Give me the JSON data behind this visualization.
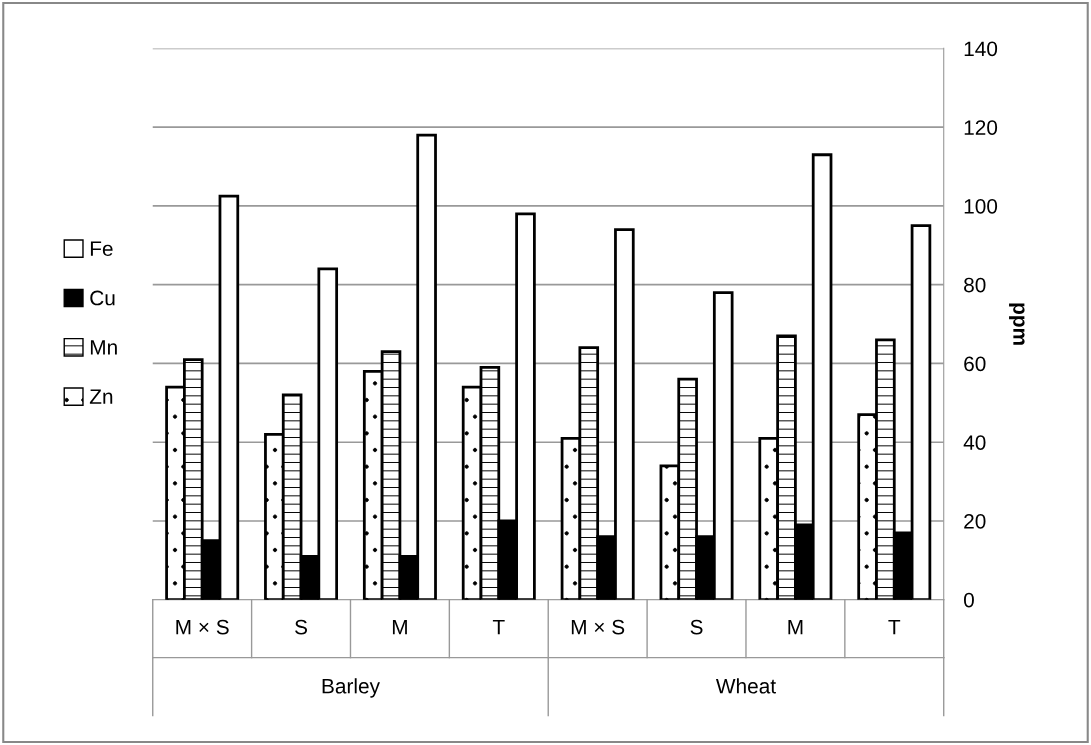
{
  "chart_data": {
    "type": "bar",
    "categories": [
      "M × S",
      "S",
      "M",
      "T",
      "M × S",
      "S",
      "M",
      "T"
    ],
    "annotations": [
      "Barley",
      "Wheat"
    ],
    "ylabel": "ppm",
    "series": [
      {
        "name": "Zn",
        "color": "#000000",
        "values": [
          54,
          42,
          58,
          54,
          41,
          34,
          41,
          47
        ]
      },
      {
        "name": "Mn",
        "color": "#000000",
        "values": [
          61,
          52,
          63,
          59,
          64,
          56,
          67,
          66
        ]
      },
      {
        "name": "Cu",
        "color": "#000000",
        "values": [
          15,
          11,
          11,
          20,
          16,
          16,
          19,
          17
        ]
      },
      {
        "name": "Fe",
        "color": "#ffffff",
        "values": [
          102.5,
          84,
          118,
          98,
          94,
          78,
          113,
          95
        ]
      }
    ],
    "ylim": [
      0,
      140
    ],
    "yticks": [
      0,
      20,
      40,
      60,
      80,
      100,
      120,
      140
    ],
    "grid": "y",
    "legend": "left"
  }
}
